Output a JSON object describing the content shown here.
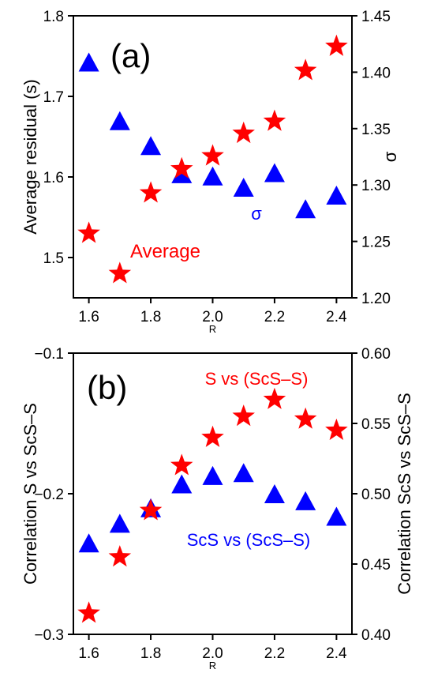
{
  "chart_data": [
    {
      "type": "scatter",
      "panel_label": "(a)",
      "xlabel": "R",
      "x_ticks": [
        "1.6",
        "1.8",
        "2.0",
        "2.2",
        "2.4"
      ],
      "xlim": [
        1.55,
        2.45
      ],
      "ylabel_left": "Average residual (s)",
      "ylim_left": [
        1.45,
        1.8
      ],
      "y_ticks_left": [
        "1.5",
        "1.6",
        "1.7",
        "1.8"
      ],
      "ylabel_right": "σ",
      "ylim_right": [
        1.2,
        1.45
      ],
      "y_ticks_right": [
        "1.20",
        "1.25",
        "1.30",
        "1.35",
        "1.40",
        "1.45"
      ],
      "series": [
        {
          "name": "Average",
          "axis": "left",
          "marker": "star",
          "color": "#ff0000",
          "x": [
            1.6,
            1.7,
            1.8,
            1.9,
            2.0,
            2.1,
            2.2,
            2.3,
            2.4
          ],
          "y": [
            1.53,
            1.48,
            1.58,
            1.61,
            1.626,
            1.654,
            1.669,
            1.732,
            1.762
          ]
        },
        {
          "name": "σ",
          "axis": "right",
          "marker": "triangle",
          "color": "#0000ff",
          "x": [
            1.6,
            1.7,
            1.8,
            1.9,
            2.0,
            2.1,
            2.2,
            2.3,
            2.4
          ],
          "y": [
            1.409,
            1.357,
            1.335,
            1.31,
            1.308,
            1.298,
            1.311,
            1.279,
            1.291
          ]
        }
      ],
      "annotations": [
        {
          "text": "Average",
          "color": "#ff0000"
        },
        {
          "text": "σ",
          "color": "#0000ff"
        }
      ]
    },
    {
      "type": "scatter",
      "panel_label": "(b)",
      "xlabel": "R",
      "x_ticks": [
        "1.6",
        "1.8",
        "2.0",
        "2.2",
        "2.4"
      ],
      "xlim": [
        1.55,
        2.45
      ],
      "ylabel_left": "Correlation S vs ScS–S",
      "ylim_left": [
        -0.3,
        -0.1
      ],
      "y_ticks_left": [
        "−0.3",
        "−0.2",
        "−0.1"
      ],
      "ylabel_right": "Correlation ScS vs ScS–S",
      "ylim_right": [
        0.4,
        0.6
      ],
      "y_ticks_right": [
        "0.40",
        "0.45",
        "0.50",
        "0.55",
        "0.60"
      ],
      "series": [
        {
          "name": "S vs (ScS–S)",
          "axis": "left",
          "marker": "star",
          "color": "#ff0000",
          "x": [
            1.6,
            1.7,
            1.8,
            1.9,
            2.0,
            2.1,
            2.2,
            2.3,
            2.4
          ],
          "y": [
            -0.285,
            -0.245,
            -0.212,
            -0.18,
            -0.16,
            -0.145,
            -0.133,
            -0.147,
            -0.155
          ]
        },
        {
          "name": "ScS vs (ScS–S)",
          "axis": "right",
          "marker": "triangle",
          "color": "#0000ff",
          "x": [
            1.6,
            1.7,
            1.8,
            1.9,
            2.0,
            2.1,
            2.2,
            2.3,
            2.4
          ],
          "y": [
            0.465,
            0.479,
            0.49,
            0.507,
            0.513,
            0.515,
            0.5,
            0.495,
            0.484
          ]
        }
      ],
      "annotations": [
        {
          "text": "S vs (ScS–S)",
          "color": "#ff0000"
        },
        {
          "text": "ScS vs (ScS–S)",
          "color": "#0000ff"
        }
      ]
    }
  ]
}
